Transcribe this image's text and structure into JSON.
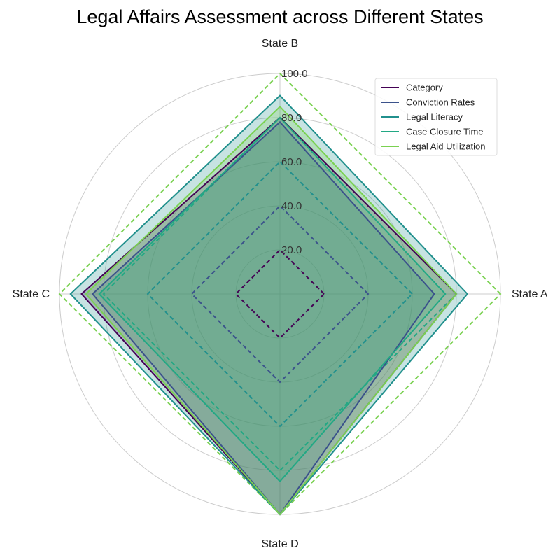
{
  "chart_data": {
    "type": "radar",
    "title": "Legal Affairs Assessment across Different States",
    "axes": [
      "State A",
      "State B",
      "State C",
      "State D"
    ],
    "r_ticks": [
      20,
      40,
      60,
      80,
      100
    ],
    "r_tick_labels": [
      "20.0",
      "40.0",
      "60.0",
      "80.0",
      "100.0"
    ],
    "r_range": [
      0,
      100
    ],
    "grid": true,
    "legend_position": "top-right",
    "series": [
      {
        "name": "Category",
        "values": [
          80,
          80,
          90,
          100
        ],
        "color": "#440154"
      },
      {
        "name": "Conviction Rates",
        "values": [
          70,
          78,
          85,
          100
        ],
        "color": "#3b528b"
      },
      {
        "name": "Legal Literacy",
        "values": [
          85,
          90,
          95,
          100
        ],
        "color": "#21908d"
      },
      {
        "name": "Case Closure Time",
        "values": [
          75,
          80,
          82,
          85
        ],
        "color": "#22a884"
      },
      {
        "name": "Legal Aid Utilization",
        "values": [
          80,
          85,
          88,
          100
        ],
        "color": "#7ad151"
      }
    ],
    "reference_rings": [
      {
        "value": 20,
        "color": "#440154"
      },
      {
        "value": 40,
        "color": "#3b528b"
      },
      {
        "value": 60,
        "color": "#21908d"
      },
      {
        "value": 80,
        "color": "#22a884"
      },
      {
        "value": 100,
        "color": "#7ad151"
      }
    ],
    "fill_color": "#5f9d82"
  }
}
